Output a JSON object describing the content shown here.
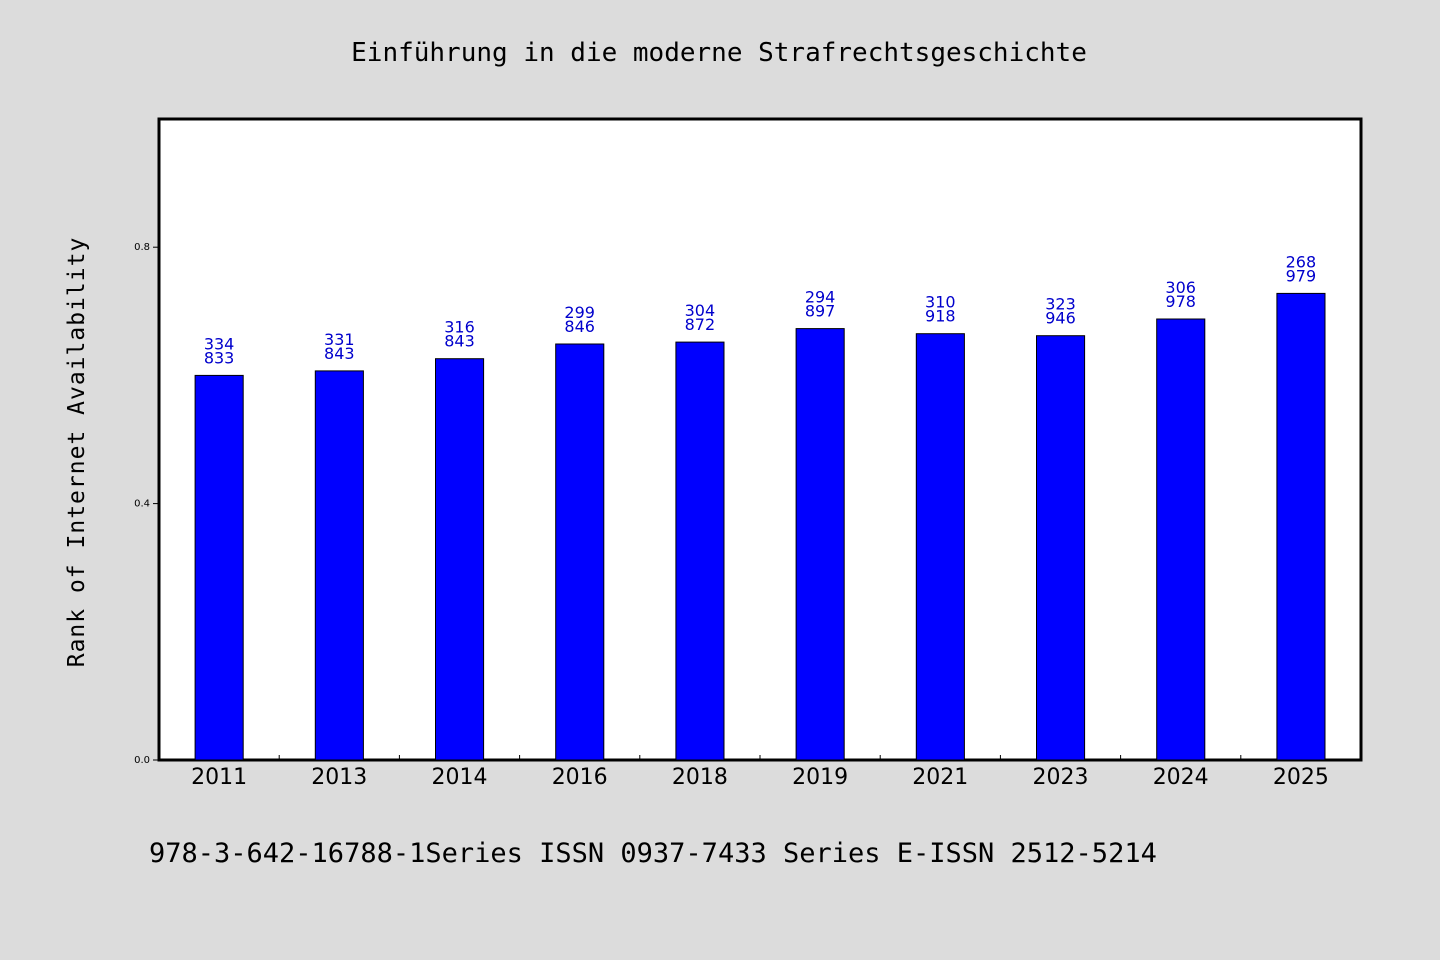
{
  "chart_data": {
    "type": "bar",
    "title": "Einführung in die moderne Strafrechtsgeschichte",
    "ylabel": "Rank of Internet Availability",
    "xlabel": "",
    "ylim": [
      0,
      1.0
    ],
    "yticks": [
      "0.0",
      "0.4",
      "0.8"
    ],
    "ytick_values": [
      0.0,
      0.4,
      0.8
    ],
    "categories": [
      "2011",
      "2013",
      "2014",
      "2016",
      "2018",
      "2019",
      "2021",
      "2023",
      "2024",
      "2025"
    ],
    "values": [
      0.6,
      0.607,
      0.626,
      0.649,
      0.652,
      0.673,
      0.665,
      0.662,
      0.688,
      0.728
    ],
    "data_labels": [
      [
        "334",
        "833"
      ],
      [
        "331",
        "843"
      ],
      [
        "316",
        "843"
      ],
      [
        "299",
        "846"
      ],
      [
        "304",
        "872"
      ],
      [
        "294",
        "897"
      ],
      [
        "310",
        "918"
      ],
      [
        "323",
        "946"
      ],
      [
        "306",
        "978"
      ],
      [
        "268",
        "979"
      ]
    ],
    "grid": false,
    "legend": "none",
    "colors": {
      "bar": "#0000ff",
      "label": "#0000cc",
      "plot_background": "#ffffff",
      "page_background": "#dcdcdc"
    }
  },
  "footer": {
    "text": "978-3-642-16788-1Series ISSN 0937-7433 Series E-ISSN 2512-5214"
  }
}
